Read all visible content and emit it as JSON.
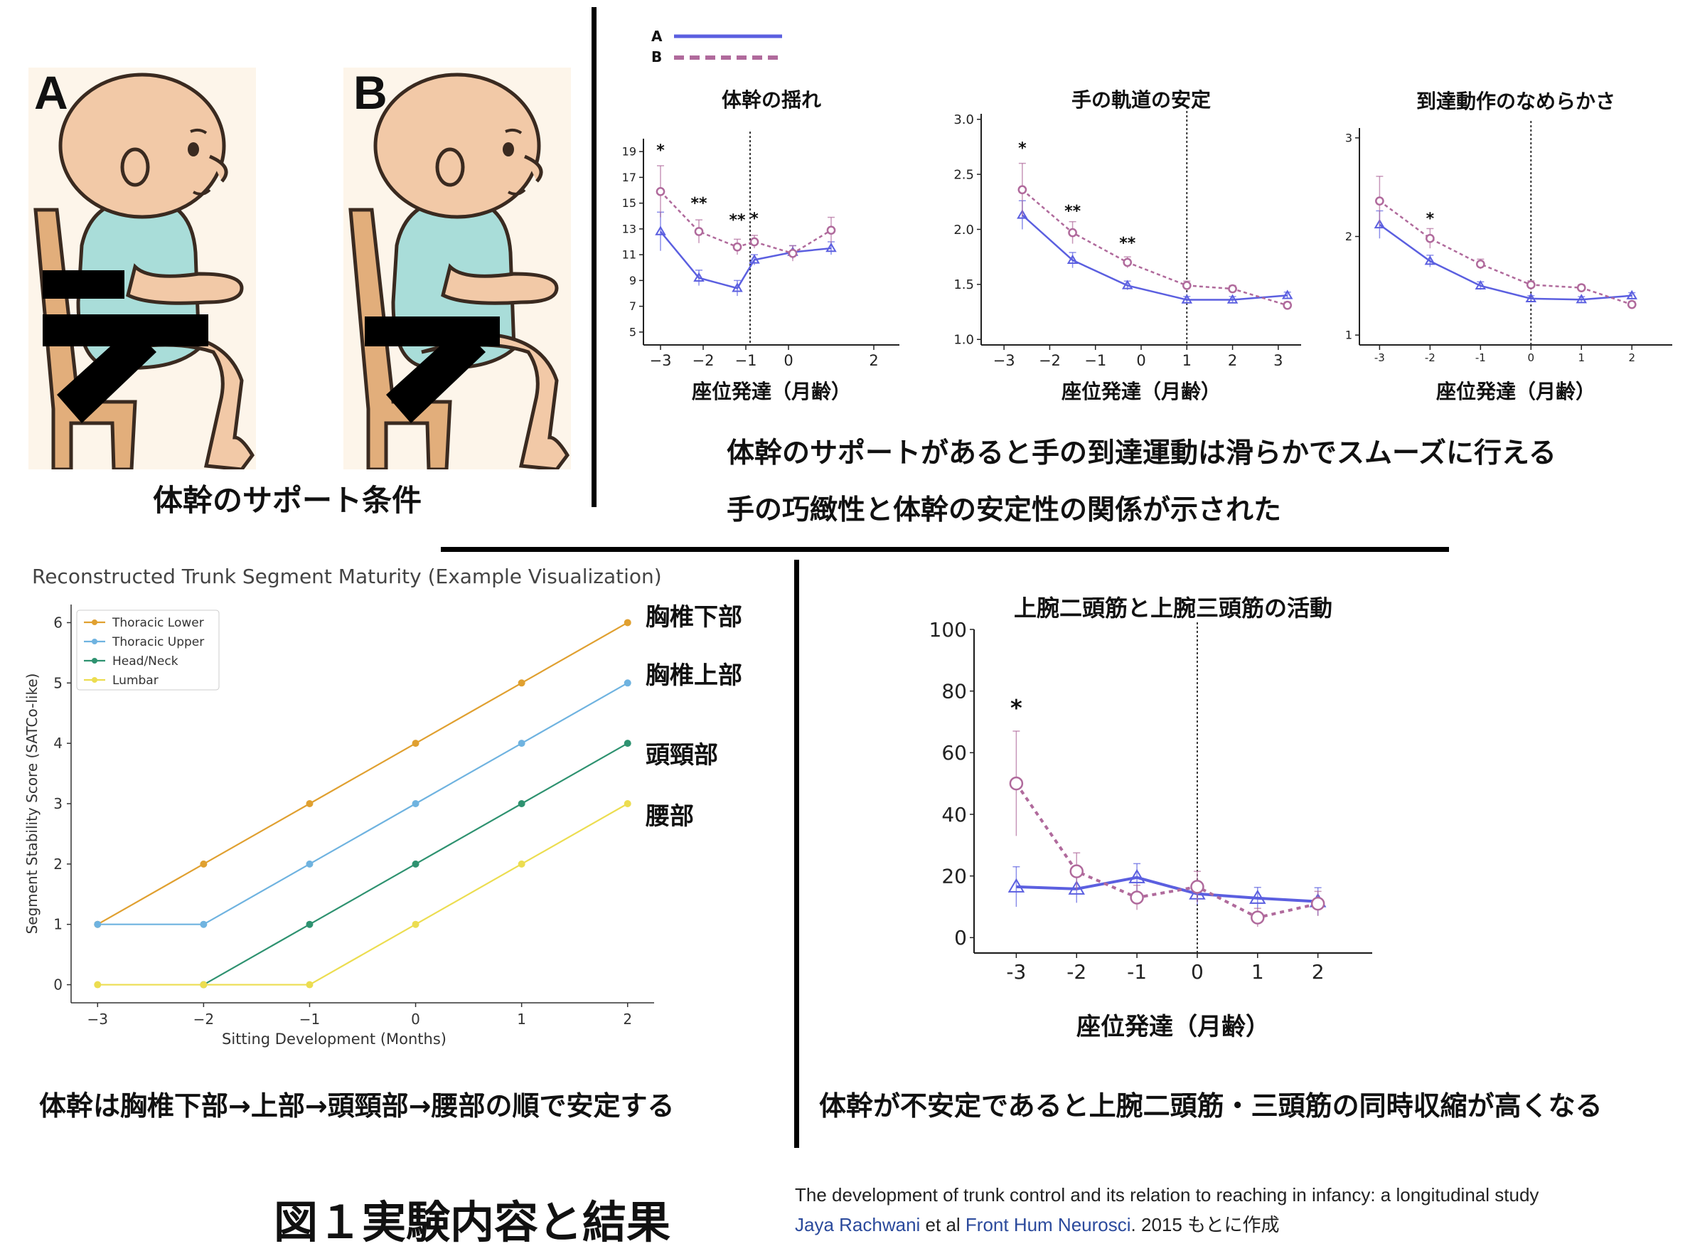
{
  "top_left": {
    "label_a": "A",
    "label_b": "B",
    "caption": "体幹のサポート条件"
  },
  "top_right": {
    "legend": [
      {
        "name": "A",
        "color": "#5b5fe0",
        "style": "solid"
      },
      {
        "name": "B",
        "color": "#b06a9c",
        "style": "dashed"
      }
    ],
    "caption_line1": "体幹のサポートがあると手の到達運動は滑らかでスムーズに行える",
    "caption_line2": "手の巧緻性と体幹の安定性の関係が示された"
  },
  "bottom_left": {
    "caption": "体幹は胸椎下部→上部→頭頸部→腰部の順で安定する",
    "side_labels": [
      "胸椎下部",
      "胸椎上部",
      "頭頸部",
      "腰部"
    ]
  },
  "bottom_right": {
    "caption": "体幹が不安定であると上腕二頭筋・三頭筋の同時収縮が高くなる"
  },
  "figure_title": "図１実験内容と結果",
  "reference": {
    "line1": "The development of trunk control and its relation to reaching in infancy: a longitudinal study",
    "author": "Jaya Rachwani",
    "etal": " et al ",
    "journal": "Front Hum Neurosci",
    "tail": ". 2015  もとに作成"
  },
  "colors": {
    "series_a": "#5b5fe0",
    "series_b": "#b06a9c",
    "thoracic_lower": "#e0a030",
    "thoracic_upper": "#6fb3e0",
    "head_neck": "#2e9270",
    "lumbar": "#ecdd50"
  },
  "chart_data": [
    {
      "type": "line",
      "title": "体幹の揺れ",
      "xlabel": "座位発達（月齢）",
      "ylabel": "",
      "xlim": [
        -3.4,
        2.6
      ],
      "ylim": [
        4,
        20
      ],
      "x_ticks": [
        "−3",
        "−2",
        "−1",
        "0",
        "2"
      ],
      "x_tick_values": [
        -3,
        -2,
        -1,
        0,
        2
      ],
      "y_ticks": [
        "5",
        "7",
        "9",
        "11",
        "13",
        "15",
        "17",
        "19"
      ],
      "y_tick_values": [
        5,
        7,
        9,
        11,
        13,
        15,
        17,
        19
      ],
      "vline": -0.9,
      "series": [
        {
          "name": "A",
          "x": [
            -3,
            -2.1,
            -1.2,
            -0.8,
            0.1,
            1.0
          ],
          "y": [
            12.8,
            9.2,
            8.4,
            10.6,
            11.2,
            11.5
          ],
          "err": [
            1.5,
            0.6,
            0.6,
            0.4,
            0.5,
            0.5
          ]
        },
        {
          "name": "B",
          "x": [
            -3,
            -2.1,
            -1.2,
            -0.8,
            0.1,
            1.0
          ],
          "y": [
            15.9,
            12.8,
            11.6,
            12.0,
            11.1,
            12.9
          ],
          "err": [
            2.0,
            0.9,
            0.6,
            0.5,
            0.6,
            1.0
          ]
        }
      ],
      "annotations": [
        {
          "x": -3,
          "y": 18.7,
          "text": "*"
        },
        {
          "x": -2.1,
          "y": 14.6,
          "text": "**"
        },
        {
          "x": -1.2,
          "y": 13.3,
          "text": "**"
        },
        {
          "x": -0.8,
          "y": 13.4,
          "text": "*"
        }
      ]
    },
    {
      "type": "line",
      "title": "手の軌道の安定",
      "xlabel": "座位発達（月齢）",
      "ylabel": "",
      "xlim": [
        -3.5,
        3.5
      ],
      "ylim": [
        0.95,
        3.05
      ],
      "x_ticks": [
        "−3",
        "−2",
        "−1",
        "0",
        "1",
        "2",
        "3"
      ],
      "x_tick_values": [
        -3,
        -2,
        -1,
        0,
        1,
        2,
        3
      ],
      "y_ticks": [
        "1.0",
        "1.5",
        "2.0",
        "2.5",
        "3.0"
      ],
      "y_tick_values": [
        1.0,
        1.5,
        2.0,
        2.5,
        3.0
      ],
      "vline": 1.0,
      "series": [
        {
          "name": "A",
          "x": [
            -2.6,
            -1.5,
            -0.3,
            1.0,
            2.0,
            3.2
          ],
          "y": [
            2.13,
            1.72,
            1.49,
            1.36,
            1.36,
            1.4
          ],
          "err": [
            0.13,
            0.07,
            0.04,
            0.03,
            0.03,
            0.03
          ]
        },
        {
          "name": "B",
          "x": [
            -2.6,
            -1.5,
            -0.3,
            1.0,
            2.0,
            3.2
          ],
          "y": [
            2.36,
            1.97,
            1.7,
            1.49,
            1.46,
            1.31
          ],
          "err": [
            0.24,
            0.1,
            0.05,
            0.04,
            0.03,
            0.03
          ]
        }
      ],
      "annotations": [
        {
          "x": -2.6,
          "y": 2.69,
          "text": "*"
        },
        {
          "x": -1.5,
          "y": 2.12,
          "text": "**"
        },
        {
          "x": -0.3,
          "y": 1.83,
          "text": "**"
        }
      ]
    },
    {
      "type": "line",
      "title": "到達動作のなめらかさ",
      "xlabel": "座位発達（月齢）",
      "ylabel": "",
      "xlim": [
        -3.4,
        2.8
      ],
      "ylim": [
        0.9,
        3.1
      ],
      "x_ticks": [
        "-3",
        "-2",
        "-1",
        "0",
        "1",
        "2"
      ],
      "x_tick_values": [
        -3,
        -2,
        -1,
        0,
        1,
        2
      ],
      "y_ticks": [
        "1",
        "2",
        "3"
      ],
      "y_tick_values": [
        1,
        2,
        3
      ],
      "vline": 0,
      "series": [
        {
          "name": "A",
          "x": [
            -3,
            -2,
            -1,
            0,
            1,
            2
          ],
          "y": [
            2.12,
            1.75,
            1.5,
            1.37,
            1.36,
            1.4
          ],
          "err": [
            0.14,
            0.06,
            0.04,
            0.03,
            0.03,
            0.03
          ]
        },
        {
          "name": "B",
          "x": [
            -3,
            -2,
            -1,
            0,
            1,
            2
          ],
          "y": [
            2.36,
            1.98,
            1.72,
            1.51,
            1.48,
            1.31
          ],
          "err": [
            0.25,
            0.1,
            0.05,
            0.04,
            0.03,
            0.03
          ]
        }
      ],
      "annotations": [
        {
          "x": -2,
          "y": 2.13,
          "text": "*"
        }
      ]
    },
    {
      "type": "line",
      "title": "Reconstructed Trunk Segment Maturity (Example Visualization)",
      "xlabel": "Sitting Development (Months)",
      "ylabel": "Segment Stability Score (SATCo-like)",
      "xlim": [
        -3.25,
        2.25
      ],
      "ylim": [
        -0.3,
        6.3
      ],
      "x_ticks": [
        "−3",
        "−2",
        "−1",
        "0",
        "1",
        "2"
      ],
      "x_tick_values": [
        -3,
        -2,
        -1,
        0,
        1,
        2
      ],
      "y_ticks": [
        "0",
        "1",
        "2",
        "3",
        "4",
        "5",
        "6"
      ],
      "y_tick_values": [
        0,
        1,
        2,
        3,
        4,
        5,
        6
      ],
      "legend_position": "top-left",
      "series": [
        {
          "name": "Thoracic Lower",
          "x": [
            -3,
            -2,
            -1,
            0,
            1,
            2
          ],
          "y": [
            1,
            2,
            3,
            4,
            5,
            6
          ]
        },
        {
          "name": "Thoracic Upper",
          "x": [
            -3,
            -2,
            -1,
            0,
            1,
            2
          ],
          "y": [
            1,
            1,
            2,
            3,
            4,
            5
          ]
        },
        {
          "name": "Head/Neck",
          "x": [
            -2,
            -1,
            0,
            1,
            2
          ],
          "y": [
            0,
            1,
            2,
            3,
            4
          ]
        },
        {
          "name": "Lumbar",
          "x": [
            -3,
            -2,
            -1,
            0,
            1,
            2
          ],
          "y": [
            0,
            0,
            0,
            1,
            2,
            3
          ]
        }
      ]
    },
    {
      "type": "line",
      "title": "上腕二頭筋と上腕三頭筋の活動",
      "xlabel": "座位発達（月齢）",
      "ylabel": "",
      "xlim": [
        -3.7,
        2.9
      ],
      "ylim": [
        -5,
        100
      ],
      "x_ticks": [
        "-3",
        "-2",
        "-1",
        "0",
        "1",
        "2"
      ],
      "x_tick_values": [
        -3,
        -2,
        -1,
        0,
        1,
        2
      ],
      "y_ticks": [
        "0",
        "20",
        "40",
        "60",
        "80",
        "100"
      ],
      "y_tick_values": [
        0,
        20,
        40,
        60,
        80,
        100
      ],
      "vline": 0,
      "series": [
        {
          "name": "A",
          "x": [
            -3,
            -2,
            -1,
            0,
            1,
            2
          ],
          "y": [
            16.5,
            15.8,
            19.5,
            14.2,
            12.8,
            11.7
          ],
          "err": [
            6.5,
            4.5,
            4.5,
            3.5,
            3.5,
            4.5
          ]
        },
        {
          "name": "B",
          "x": [
            -3,
            -2,
            -1,
            0,
            1,
            2
          ],
          "y": [
            50,
            21.5,
            13,
            16.5,
            6.5,
            11
          ],
          "err": [
            17,
            6,
            4,
            5,
            3,
            4
          ]
        }
      ],
      "annotations": [
        {
          "x": -3,
          "y": 72,
          "text": "*"
        }
      ]
    }
  ]
}
